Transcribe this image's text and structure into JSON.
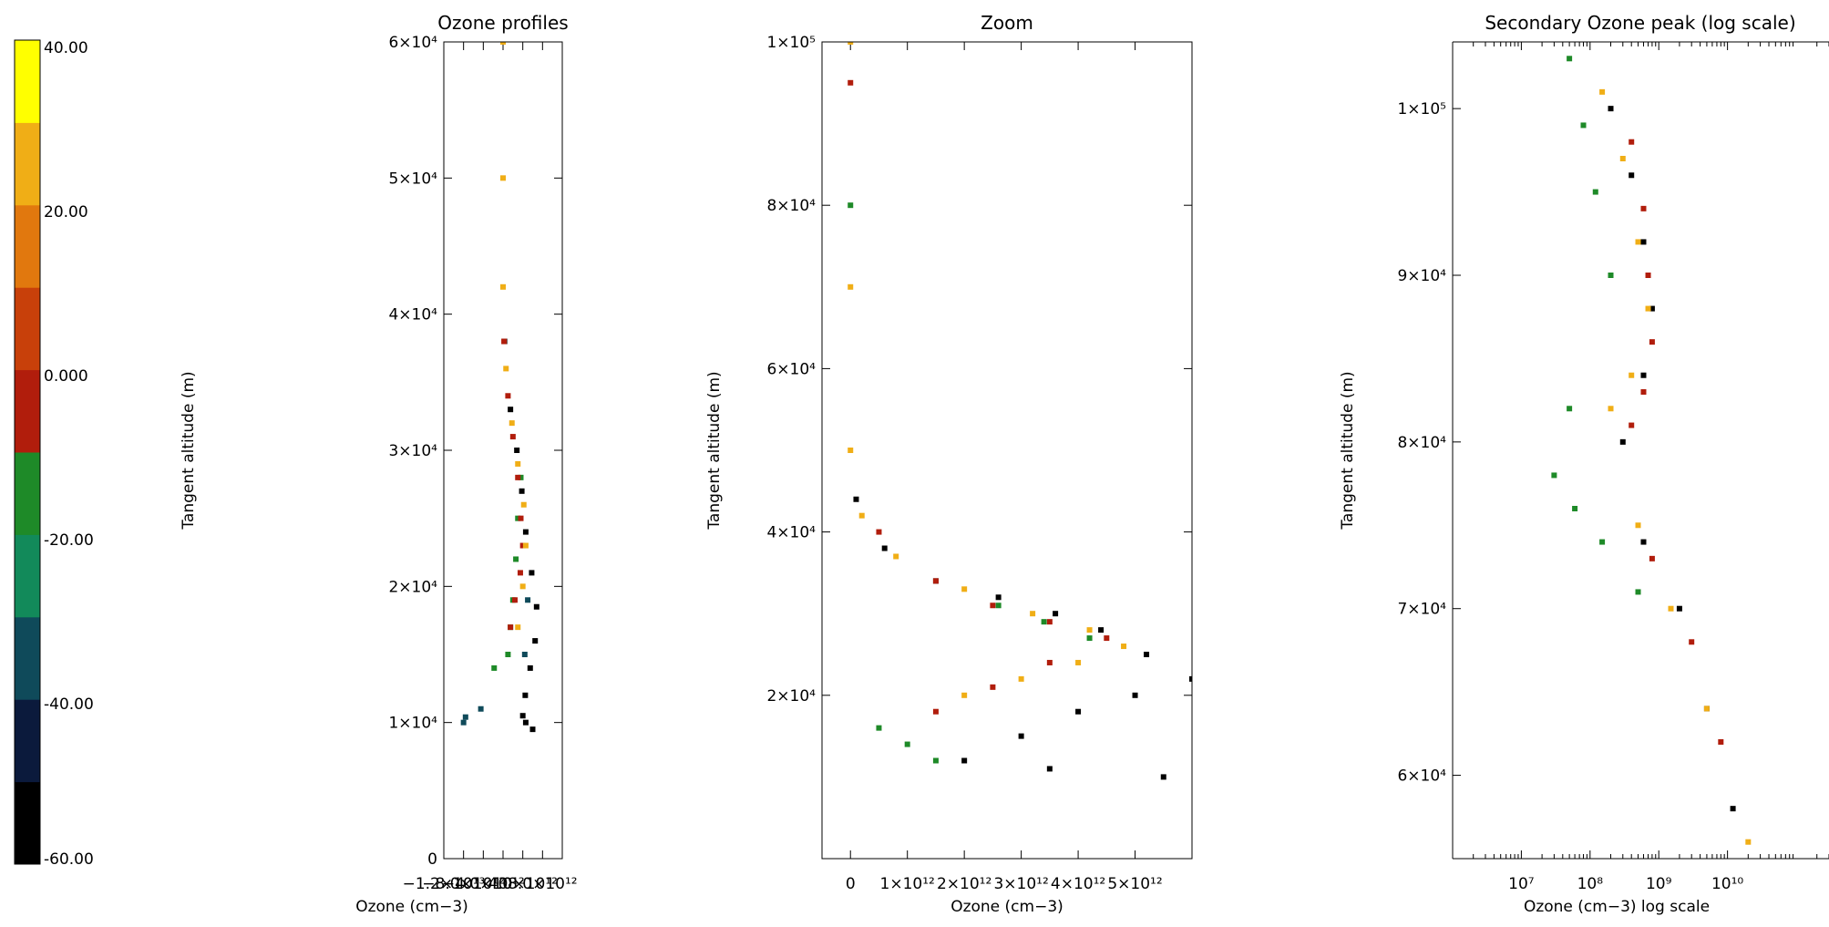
{
  "colorbar": {
    "ticks": [
      "40.00",
      "20.00",
      "0.000",
      "-20.00",
      "-40.00",
      "-60.00"
    ],
    "min": -60,
    "max": 40,
    "colors": [
      "#000000",
      "#0b1a3c",
      "#0f4a5a",
      "#128a5a",
      "#1e8a28",
      "#b11d0c",
      "#c8400a",
      "#e1780e",
      "#f0ae16",
      "#ffff00"
    ]
  },
  "chart_data": [
    {
      "type": "scatter",
      "title": "Ozone profiles",
      "xlabel": "Ozone (cm−3)",
      "ylabel": "Tangent altitude (m)",
      "xlim": [
        -12000000000000.0,
        12000000000000.0
      ],
      "ylim": [
        0,
        60000
      ],
      "xticks": [
        -12000000000000.0,
        -8000000000000.0,
        -4000000000000.0,
        0,
        4000000000000.0,
        8000000000000.0
      ],
      "xtick_labels": [
        "−1.2×10¹³",
        "−8.0×10¹²",
        "−4.0×10¹²",
        "0",
        "4.0×10¹²",
        "8.0×10¹²"
      ],
      "yticks": [
        0,
        10000,
        20000,
        30000,
        40000,
        50000,
        60000
      ],
      "ytick_labels": [
        "0",
        "1×10⁴",
        "2×10⁴",
        "3×10⁴",
        "4×10⁴",
        "5×10⁴",
        "6×10⁴"
      ],
      "series": [
        {
          "color": "#000000",
          "x": [
            300000000000.0,
            1500000000000.0,
            2800000000000.0,
            3800000000000.0,
            4600000000000.0,
            5800000000000.0,
            6800000000000.0,
            6500000000000.0,
            5500000000000.0,
            4500000000000.0,
            4000000000000.0,
            4600000000000.0,
            6000000000000.0
          ],
          "y": [
            38000,
            33000,
            30000,
            27000,
            24000,
            21000,
            18500,
            16000,
            14000,
            12000,
            10500,
            10000,
            9500
          ]
        },
        {
          "color": "#0f4a5a",
          "x": [
            -8000000000000.0,
            -7600000000000.0,
            -4500000000000.0,
            4400000000000.0,
            5000000000000.0
          ],
          "y": [
            10000,
            10400,
            11000,
            15000,
            19000
          ]
        },
        {
          "color": "#1e8a28",
          "x": [
            -1800000000000.0,
            1000000000000.0,
            1500000000000.0,
            2000000000000.0,
            2600000000000.0,
            3000000000000.0,
            3600000000000.0
          ],
          "y": [
            14000,
            15000,
            17000,
            19000,
            22000,
            25000,
            28000
          ]
        },
        {
          "color": "#b11d0c",
          "x": [
            200000000000.0,
            1000000000000.0,
            2000000000000.0,
            3000000000000.0,
            3600000000000.0,
            4000000000000.0,
            3500000000000.0,
            2400000000000.0,
            1500000000000.0
          ],
          "y": [
            38000,
            34000,
            31000,
            28000,
            25000,
            23000,
            21000,
            19000,
            17000
          ]
        },
        {
          "color": "#f0ae16",
          "x": [
            0,
            0,
            0,
            600000000000.0,
            1800000000000.0,
            3000000000000.0,
            4200000000000.0,
            4600000000000.0,
            4000000000000.0,
            3000000000000.0
          ],
          "y": [
            60000,
            50000,
            42000,
            36000,
            32000,
            29000,
            26000,
            23000,
            20000,
            17000
          ]
        }
      ]
    },
    {
      "type": "scatter",
      "title": "Zoom",
      "xlabel": "Ozone (cm−3)",
      "ylabel": "Tangent altitude (m)",
      "xlim": [
        -500000000000.0,
        6000000000000.0
      ],
      "ylim": [
        0,
        100000
      ],
      "xticks": [
        0,
        1000000000000.0,
        2000000000000.0,
        3000000000000.0,
        4000000000000.0,
        5000000000000.0
      ],
      "xtick_labels": [
        "0",
        "1×10¹²",
        "2×10¹²",
        "3×10¹²",
        "4×10¹²",
        "5×10¹²"
      ],
      "yticks": [
        20000,
        40000,
        60000,
        80000,
        100000
      ],
      "ytick_labels": [
        "2×10⁴",
        "4×10⁴",
        "6×10⁴",
        "8×10⁴",
        "1×10⁵"
      ],
      "series": [
        {
          "color": "#000000",
          "x": [
            100000000000.0,
            600000000000.0,
            1500000000000.0,
            2600000000000.0,
            3600000000000.0,
            4400000000000.0,
            5200000000000.0,
            6000000000000.0,
            5000000000000.0,
            4000000000000.0,
            3000000000000.0,
            2000000000000.0,
            3500000000000.0,
            5500000000000.0
          ],
          "y": [
            44000,
            38000,
            34000,
            32000,
            30000,
            28000,
            25000,
            22000,
            20000,
            18000,
            15000,
            12000,
            11000,
            10000
          ]
        },
        {
          "color": "#1e8a28",
          "x": [
            0,
            500000000000.0,
            1000000000000.0,
            1500000000000.0,
            2600000000000.0,
            3400000000000.0,
            4200000000000.0
          ],
          "y": [
            80000,
            16000,
            14000,
            12000,
            31000,
            29000,
            27000
          ]
        },
        {
          "color": "#b11d0c",
          "x": [
            0,
            500000000000.0,
            1500000000000.0,
            2500000000000.0,
            3500000000000.0,
            4500000000000.0,
            3500000000000.0,
            2500000000000.0,
            1500000000000.0
          ],
          "y": [
            95000,
            40000,
            34000,
            31000,
            29000,
            27000,
            24000,
            21000,
            18000
          ]
        },
        {
          "color": "#f0ae16",
          "x": [
            0,
            0,
            0,
            200000000000.0,
            800000000000.0,
            2000000000000.0,
            3200000000000.0,
            4200000000000.0,
            4800000000000.0,
            4000000000000.0,
            3000000000000.0,
            2000000000000.0
          ],
          "y": [
            100000,
            70000,
            50000,
            42000,
            37000,
            33000,
            30000,
            28000,
            26000,
            24000,
            22000,
            20000
          ]
        }
      ]
    },
    {
      "type": "scatter",
      "title": "Secondary Ozone peak (log scale)",
      "xlabel": "Ozone (cm−3) log scale",
      "ylabel": "Tangent altitude (m)",
      "xscale": "log",
      "xlim": [
        1000000.0,
        300000000000.0
      ],
      "ylim": [
        55000,
        104000
      ],
      "xticks": [
        10000000.0,
        100000000.0,
        1000000000.0,
        10000000000.0
      ],
      "xtick_labels": [
        "10⁷",
        "10⁸",
        "10⁹",
        "10¹⁰"
      ],
      "yticks": [
        60000,
        70000,
        80000,
        90000,
        100000
      ],
      "ytick_labels": [
        "6×10⁴",
        "7×10⁴",
        "8×10⁴",
        "9×10⁴",
        "1×10⁵"
      ],
      "series": [
        {
          "color": "#000000",
          "x": [
            200000000.0,
            400000000.0,
            600000000.0,
            800000000.0,
            600000000.0,
            300000000.0,
            600000000.0,
            2000000000.0,
            5000000000.0,
            12000000000.0
          ],
          "y": [
            100000,
            96000,
            92000,
            88000,
            84000,
            80000,
            74000,
            70000,
            64000,
            58000
          ]
        },
        {
          "color": "#1e8a28",
          "x": [
            50000000.0,
            80000000.0,
            120000000.0,
            200000000.0,
            50000000.0,
            30000000.0,
            60000000.0,
            150000000.0,
            500000000.0
          ],
          "y": [
            103000,
            99000,
            95000,
            90000,
            82000,
            78000,
            76000,
            74000,
            71000
          ]
        },
        {
          "color": "#b11d0c",
          "x": [
            400000000.0,
            600000000.0,
            700000000.0,
            800000000.0,
            600000000.0,
            400000000.0,
            800000000.0,
            3000000000.0,
            8000000000.0
          ],
          "y": [
            98000,
            94000,
            90000,
            86000,
            83000,
            81000,
            73000,
            68000,
            62000
          ]
        },
        {
          "color": "#f0ae16",
          "x": [
            150000000.0,
            300000000.0,
            500000000.0,
            700000000.0,
            400000000.0,
            200000000.0,
            500000000.0,
            1500000000.0,
            5000000000.0,
            20000000000.0
          ],
          "y": [
            101000,
            97000,
            92000,
            88000,
            84000,
            82000,
            75000,
            70000,
            64000,
            56000
          ]
        }
      ]
    }
  ]
}
